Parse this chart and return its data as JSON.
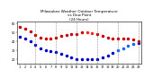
{
  "title": "Milwaukee Weather Outdoor Temperature\nvs Dew Point\n(24 Hours)",
  "title_fontsize": 3.0,
  "background_color": "#ffffff",
  "hours": [
    1,
    2,
    3,
    4,
    5,
    6,
    7,
    8,
    9,
    10,
    11,
    12,
    13,
    14,
    15,
    16,
    17,
    18,
    19,
    20,
    21,
    22,
    23,
    24
  ],
  "temp": [
    56,
    54,
    51,
    47,
    44,
    43,
    43,
    44,
    46,
    47,
    48,
    48,
    50,
    50,
    49,
    48,
    46,
    44,
    43,
    43,
    43,
    43,
    42,
    40
  ],
  "dew": [
    45,
    43,
    40,
    36,
    32,
    30,
    29,
    28,
    26,
    24,
    22,
    20,
    20,
    20,
    20,
    20,
    22,
    24,
    27,
    30,
    32,
    35,
    37,
    38
  ],
  "temp_color": "#cc0000",
  "dew_color": "#0000cc",
  "highlight_temp_indices": [
    13,
    14
  ],
  "highlight_color": "#ff2222",
  "highlight_dew_indices": [
    19,
    20,
    21,
    22
  ],
  "highlight_dew_color": "#0066ff",
  "ylim": [
    15,
    62
  ],
  "xlim": [
    0.5,
    24.5
  ],
  "ytick_values": [
    20,
    30,
    40,
    50,
    60
  ],
  "ytick_labels": [
    "20",
    "30",
    "40",
    "50",
    "60"
  ],
  "xtick_positions": [
    1,
    2,
    3,
    4,
    5,
    6,
    7,
    8,
    9,
    10,
    11,
    12,
    13,
    14,
    15,
    16,
    17,
    18,
    19,
    20,
    21,
    22,
    23,
    24
  ],
  "xtick_labels": [
    "1",
    "2",
    "3",
    "4",
    "5",
    "6",
    "7",
    "8",
    "9",
    "10",
    "11",
    "12",
    "13",
    "14",
    "15",
    "16",
    "17",
    "18",
    "19",
    "20",
    "21",
    "22",
    "23",
    "24"
  ],
  "vgrid_positions": [
    4,
    8,
    12,
    16,
    20,
    24
  ],
  "marker_size": 1.5,
  "tick_fontsize": 2.5,
  "figsize": [
    1.6,
    0.87
  ],
  "dpi": 100
}
